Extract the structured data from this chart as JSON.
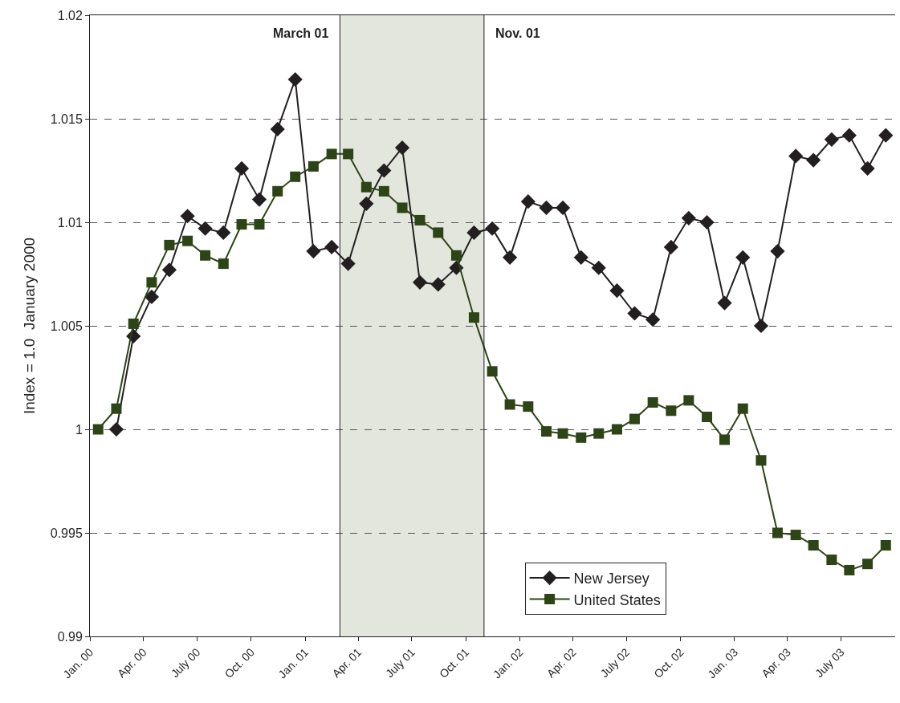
{
  "chart_data": {
    "type": "line",
    "ylabel": "Index = 1.0  January 2000",
    "x": [
      "2000-01-15",
      "2000-02-15",
      "2000-03-15",
      "2000-04-15",
      "2000-05-15",
      "2000-06-15",
      "2000-07-15",
      "2000-08-15",
      "2000-09-15",
      "2000-10-15",
      "2000-11-15",
      "2000-12-15",
      "2001-01-15",
      "2001-02-15",
      "2001-03-15",
      "2001-04-15",
      "2001-05-15",
      "2001-06-15",
      "2001-07-15",
      "2001-08-15",
      "2001-09-15",
      "2001-10-15",
      "2001-11-15",
      "2001-12-15",
      "2002-01-15",
      "2002-02-15",
      "2002-03-15",
      "2002-04-15",
      "2002-05-15",
      "2002-06-15",
      "2002-07-15",
      "2002-08-15",
      "2002-09-15",
      "2002-10-15",
      "2002-11-15",
      "2002-12-15",
      "2003-01-15",
      "2003-02-15",
      "2003-03-15",
      "2003-04-15",
      "2003-05-15",
      "2003-06-15",
      "2003-07-15",
      "2003-08-15",
      "2003-09-15"
    ],
    "series": [
      {
        "name": "New Jersey",
        "color": "#231f20",
        "marker": "diamond",
        "values": [
          null,
          1.0,
          1.0045,
          1.0064,
          1.0077,
          1.0103,
          1.0097,
          1.0095,
          1.0126,
          1.0111,
          1.0145,
          1.0169,
          1.0086,
          1.0088,
          1.008,
          1.0109,
          1.0125,
          1.0136,
          1.0071,
          1.007,
          1.0078,
          1.0095,
          1.0097,
          1.0083,
          1.011,
          1.0107,
          1.0107,
          1.0083,
          1.0078,
          1.0067,
          1.0056,
          1.0053,
          1.0088,
          1.0102,
          1.01,
          1.0061,
          1.0083,
          1.005,
          1.0086,
          1.0132,
          1.013,
          1.014,
          1.0142,
          1.0126,
          1.0142
        ]
      },
      {
        "name": "United States",
        "color": "#2d4416",
        "marker": "square",
        "values": [
          1.0,
          1.001,
          1.0051,
          1.0071,
          1.0089,
          1.0091,
          1.0084,
          1.008,
          1.0099,
          1.0099,
          1.0115,
          1.0122,
          1.0127,
          1.0133,
          1.0133,
          1.0117,
          1.0115,
          1.0107,
          1.0101,
          1.0095,
          1.0084,
          1.0054,
          1.0028,
          1.0012,
          1.0011,
          0.9999,
          0.9998,
          0.9996,
          0.9998,
          1.0,
          1.0005,
          1.0013,
          1.0009,
          1.0014,
          1.0006,
          0.9995,
          1.001,
          0.9985,
          0.995,
          0.9949,
          0.9944,
          0.9937,
          0.9932,
          0.9935,
          0.9944
        ]
      }
    ],
    "xlim": [
      "2000-01-01",
      "2003-10-01"
    ],
    "xticks": [
      {
        "value": "2000-01-01",
        "label": "Jan. 00"
      },
      {
        "value": "2000-04-01",
        "label": "Apr. 00"
      },
      {
        "value": "2000-07-01",
        "label": "July 00"
      },
      {
        "value": "2000-10-01",
        "label": "Oct. 00"
      },
      {
        "value": "2001-01-01",
        "label": "Jan. 01"
      },
      {
        "value": "2001-04-01",
        "label": "Apr. 01"
      },
      {
        "value": "2001-07-01",
        "label": "July 01"
      },
      {
        "value": "2001-10-01",
        "label": "Oct. 01"
      },
      {
        "value": "2002-01-01",
        "label": "Jan. 02"
      },
      {
        "value": "2002-04-01",
        "label": "Apr. 02"
      },
      {
        "value": "2002-07-01",
        "label": "July 02"
      },
      {
        "value": "2002-10-01",
        "label": "Oct. 02"
      },
      {
        "value": "2003-01-01",
        "label": "Jan. 03"
      },
      {
        "value": "2003-04-01",
        "label": "Apr. 03"
      },
      {
        "value": "2003-07-01",
        "label": "July 03"
      }
    ],
    "ylim": [
      0.99,
      1.02
    ],
    "yticks": [
      0.99,
      0.995,
      1,
      1.005,
      1.01,
      1.015,
      1.02
    ],
    "grid": "y",
    "legend": "bottom right",
    "bands": [
      {
        "axis": "x",
        "from": "2001-03-01",
        "to": "2001-11-01",
        "color": "#e2e6dd"
      }
    ],
    "ref_lines": [
      {
        "axis": "x",
        "value": "2001-03-01",
        "label": "March 01",
        "color": "#231f20"
      },
      {
        "axis": "x",
        "value": "2001-11-01",
        "label": "Nov. 01",
        "color": "#231f20"
      }
    ]
  }
}
